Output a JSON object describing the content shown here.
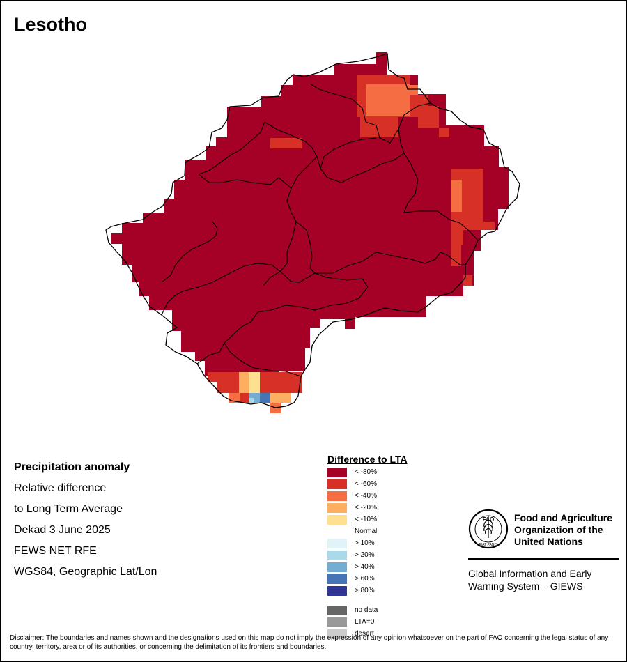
{
  "map": {
    "title": "Lesotho",
    "colors": {
      "c80": "#a50026",
      "c60": "#d73027",
      "c40": "#f46d43",
      "c20": "#fdae61",
      "c10": "#fee090",
      "p10": "#e0f3f8",
      "p20": "#abd9e9",
      "p40": "#74add1",
      "p60": "#4575b4",
      "p80": "#313695"
    }
  },
  "info": {
    "heading": "Precipitation anomaly",
    "line1": "Relative difference",
    "line2": "to Long Term Average",
    "period": "Dekad 3 June 2025",
    "source": "FEWS NET RFE",
    "projection": "WGS84, Geographic Lat/Lon"
  },
  "legend": {
    "title": "Difference to LTA",
    "items": [
      {
        "label": "< -80%",
        "color": "#a50026"
      },
      {
        "label": "< -60%",
        "color": "#d73027"
      },
      {
        "label": "< -40%",
        "color": "#f46d43"
      },
      {
        "label": "< -20%",
        "color": "#fdae61"
      },
      {
        "label": "< -10%",
        "color": "#fee090"
      },
      {
        "label": "Normal",
        "color": "#ffffff"
      },
      {
        "label": "> 10%",
        "color": "#e0f3f8"
      },
      {
        "label": "> 20%",
        "color": "#abd9e9"
      },
      {
        "label": "> 40%",
        "color": "#74add1"
      },
      {
        "label": "> 60%",
        "color": "#4575b4"
      },
      {
        "label": "> 80%",
        "color": "#313695"
      }
    ],
    "extra": [
      {
        "label": "no data",
        "color": "#666666"
      },
      {
        "label": "LTA=0",
        "color": "#999999"
      },
      {
        "label": "desert",
        "color": "#cccccc"
      }
    ]
  },
  "logo": {
    "org_line1": "Food and Agriculture",
    "org_line2": "Organization of the",
    "org_line3": "United Nations",
    "system_line1": "Global Information and Early",
    "system_line2": "Warning System – GIEWS",
    "emblem_text": "FAO",
    "motto": "FIAT PANIS"
  },
  "disclaimer": "Disclaimer: The boundaries and names shown and the designations used on this map do not imply the expression of any opinion whatsoever on the part of FAO concerning the legal status of any country, territory, area or of its authorities, or concerning the delimitation of its frontiers and boundaries."
}
